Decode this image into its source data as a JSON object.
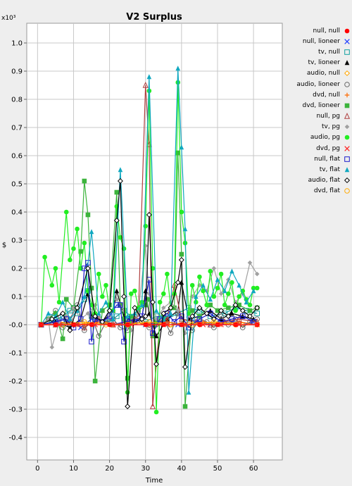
{
  "chart_data": {
    "type": "line",
    "title": "V2 Surplus",
    "xlabel": "Time",
    "ylabel": "$",
    "y_multiplier_label": "x10³",
    "xlim": [
      -3,
      68
    ],
    "ylim": [
      -0.48,
      1.07
    ],
    "x_ticks": [
      0,
      10,
      20,
      30,
      40,
      50,
      60
    ],
    "y_ticks": [
      -0.4,
      -0.3,
      -0.2,
      -0.1,
      0.0,
      0.1,
      0.2,
      0.3,
      0.4,
      0.5,
      0.6,
      0.7,
      0.8,
      0.9,
      1.0
    ],
    "y_tick_labels": [
      "-0.4",
      "-0.3",
      "-0.2",
      "-0.1",
      "-0.0",
      "0.1",
      "0.2",
      "0.3",
      "0.4",
      "0.5",
      "0.6",
      "0.7",
      "0.8",
      "0.9",
      "1.0"
    ],
    "grid": true,
    "legend_position": "right",
    "series": [
      {
        "name": "null, null",
        "color": "#ff0000",
        "marker": "circle-filled",
        "x": [
          1,
          5,
          10,
          15,
          20,
          25,
          30,
          35,
          40,
          45,
          50,
          55,
          61
        ],
        "y": [
          0,
          0,
          0,
          0,
          0,
          0,
          0,
          0,
          0,
          0,
          0,
          0,
          0
        ]
      },
      {
        "name": "null, lioneer",
        "color": "#1e3cff",
        "marker": "x",
        "x": [
          1,
          4,
          7,
          9,
          12,
          15,
          18,
          21,
          24,
          27,
          30,
          33,
          36,
          39,
          42,
          45,
          48,
          51,
          54,
          57,
          60
        ],
        "y": [
          0,
          0.01,
          0.02,
          0.01,
          -0.01,
          0.02,
          0.01,
          0,
          0.01,
          0.02,
          0,
          0.01,
          0.01,
          0,
          0.02,
          0.01,
          0,
          0.01,
          0.01,
          0,
          0.01
        ]
      },
      {
        "name": "tv, null",
        "color": "#10a0a0",
        "marker": "square-open",
        "x": [
          1,
          4,
          7,
          9,
          10,
          11,
          13,
          14,
          15,
          17,
          20,
          22,
          24,
          27,
          30,
          33,
          36,
          39,
          42,
          45,
          48,
          52,
          55,
          58,
          61
        ],
        "y": [
          0,
          0.01,
          0.03,
          0.05,
          0.06,
          0.04,
          0.09,
          0.12,
          0.03,
          0.02,
          0.01,
          0.03,
          0.05,
          0.02,
          0.01,
          0.03,
          0.02,
          0.04,
          0.06,
          0.05,
          0.03,
          0.04,
          0.06,
          0.05,
          0.04
        ]
      },
      {
        "name": "tv, lioneer",
        "color": "#000000",
        "marker": "triangle-filled",
        "x": [
          1,
          5,
          9,
          12,
          14,
          15,
          18,
          21,
          22,
          24,
          27,
          29,
          30,
          31,
          33,
          36,
          39,
          40,
          42,
          45,
          48,
          51,
          54,
          57,
          60
        ],
        "y": [
          0,
          0.01,
          -0.01,
          0.02,
          0.11,
          0.03,
          0.01,
          0.05,
          0.12,
          0.03,
          0.01,
          0.02,
          0.12,
          0.04,
          -0.04,
          0.02,
          0.05,
          0.15,
          0.02,
          0.03,
          0.05,
          0.02,
          0.04,
          0.03,
          0.02
        ]
      },
      {
        "name": "audio, null",
        "color": "#ffa500",
        "marker": "diamond-open",
        "x": [
          1,
          5,
          9,
          13,
          17,
          21,
          25,
          29,
          33,
          37,
          41,
          45,
          49,
          53,
          57,
          61
        ],
        "y": [
          0,
          0,
          0.01,
          0,
          0.01,
          0,
          0,
          0.01,
          0,
          0,
          0.01,
          0,
          0,
          0.01,
          0,
          0
        ]
      },
      {
        "name": "audio, lioneer",
        "color": "#666666",
        "marker": "circle-open",
        "x": [
          1,
          3,
          5,
          7,
          9,
          11,
          13,
          15,
          17,
          19,
          21,
          23,
          25,
          27,
          29,
          31,
          33,
          35,
          37,
          39,
          41,
          43,
          45,
          47,
          49,
          51,
          53,
          55,
          57,
          59,
          61
        ],
        "y": [
          0,
          0.02,
          0.05,
          -0.01,
          0.02,
          0.07,
          -0.02,
          0.03,
          -0.04,
          0.01,
          0.02,
          -0.01,
          -0.02,
          0.03,
          0.01,
          -0.01,
          0,
          0.02,
          -0.03,
          0.04,
          0.01,
          -0.02,
          0.02,
          0.01,
          -0.01,
          0.03,
          0,
          0.02,
          -0.01,
          0.01,
          0.02
        ]
      },
      {
        "name": "dvd, null",
        "color": "#ff6a00",
        "marker": "plus",
        "x": [
          1,
          6,
          11,
          16,
          21,
          26,
          31,
          36,
          41,
          46,
          51,
          56,
          61
        ],
        "y": [
          0,
          0.01,
          0,
          0.01,
          0,
          0.01,
          0,
          0.01,
          0,
          0.01,
          0,
          0.01,
          0
        ]
      },
      {
        "name": "dvd, lioneer",
        "color": "#3cb43c",
        "marker": "square-filled",
        "x": [
          1,
          3,
          5,
          7,
          8,
          10,
          12,
          13,
          14,
          15,
          16,
          18,
          20,
          22,
          23,
          24,
          25,
          26,
          28,
          30,
          31,
          32,
          33,
          35,
          38,
          39,
          40,
          41,
          43,
          45,
          48,
          50,
          53,
          56,
          59,
          61
        ],
        "y": [
          0,
          0.02,
          0.04,
          -0.05,
          0.09,
          0.06,
          0.26,
          0.51,
          0.39,
          0.13,
          -0.2,
          0.05,
          0.07,
          0.47,
          0.07,
          0.02,
          -0.19,
          0.03,
          0.05,
          0.07,
          0.09,
          -0.04,
          0.01,
          0.03,
          0.06,
          0.61,
          0.25,
          -0.29,
          0.05,
          0.03,
          0.07,
          0.05,
          0.06,
          0.07,
          0.05,
          0.06
        ]
      },
      {
        "name": "null, pg",
        "color": "#b04040",
        "marker": "triangle-open",
        "x": [
          1,
          5,
          9,
          13,
          17,
          21,
          25,
          28,
          30,
          31,
          32,
          34,
          36,
          38,
          40,
          44,
          48,
          52,
          56,
          61
        ],
        "y": [
          0,
          0,
          0.01,
          -0.01,
          0.02,
          0,
          0.01,
          0.03,
          0.85,
          0.64,
          -0.29,
          0.01,
          0.02,
          0.14,
          0.02,
          0.01,
          0,
          0.01,
          0.02,
          0.01
        ]
      },
      {
        "name": "tv, pg",
        "color": "#a0a0a0",
        "marker": "diamond-filled",
        "x": [
          1,
          3,
          4,
          6,
          8,
          10,
          12,
          14,
          16,
          18,
          20,
          22,
          24,
          26,
          28,
          30,
          31,
          33,
          35,
          37,
          39,
          41,
          43,
          45,
          47,
          49,
          51,
          53,
          55,
          57,
          59,
          61
        ],
        "y": [
          0,
          0.02,
          -0.08,
          0.01,
          0.03,
          0.06,
          0.02,
          0.04,
          0.07,
          0.01,
          0.03,
          0.09,
          0.05,
          -0.02,
          0.04,
          0.28,
          0.11,
          0.02,
          0.06,
          0.08,
          0.05,
          -0.03,
          0.1,
          0.14,
          0.12,
          0.2,
          0.11,
          0.16,
          0.08,
          0.11,
          0.22,
          0.18
        ]
      },
      {
        "name": "audio, pg",
        "color": "#22ee22",
        "marker": "circle-filled",
        "x": [
          1,
          2,
          4,
          5,
          6,
          8,
          9,
          10,
          11,
          12,
          13,
          14,
          15,
          16,
          17,
          18,
          19,
          20,
          21,
          22,
          23,
          24,
          25,
          26,
          27,
          28,
          29,
          30,
          31,
          32,
          33,
          34,
          35,
          36,
          37,
          38,
          39,
          40,
          41,
          42,
          43,
          44,
          45,
          46,
          47,
          48,
          49,
          50,
          51,
          52,
          53,
          54,
          55,
          56,
          57,
          58,
          59,
          60,
          61
        ],
        "y": [
          0,
          0.24,
          0.14,
          0.2,
          0.08,
          0.4,
          0.23,
          0.27,
          0.34,
          0.2,
          0.29,
          0.12,
          0.07,
          0.04,
          0.18,
          0.1,
          0.14,
          0.05,
          0.05,
          0.42,
          0.31,
          0.27,
          -0.24,
          0.11,
          0.12,
          0.06,
          0.08,
          0.35,
          0.83,
          0.2,
          -0.31,
          0.08,
          0.11,
          0.18,
          0.06,
          0.11,
          0.86,
          0.4,
          0.29,
          0.04,
          0.14,
          0.08,
          0.17,
          0.12,
          0.07,
          0.19,
          0.1,
          0.13,
          0.18,
          0.07,
          0.11,
          0.15,
          0.05,
          0.1,
          0.12,
          0.09,
          0.07,
          0.13,
          0.13
        ]
      },
      {
        "name": "dvd, pg",
        "color": "#ff2020",
        "marker": "x",
        "x": [
          1,
          6,
          11,
          16,
          21,
          26,
          31,
          36,
          41,
          46,
          51,
          56,
          61
        ],
        "y": [
          0,
          0,
          0,
          0,
          0,
          0,
          0,
          0,
          0,
          0,
          0,
          0,
          0
        ]
      },
      {
        "name": "null, flat",
        "color": "#1a1acc",
        "marker": "square-open",
        "x": [
          1,
          5,
          8,
          10,
          12,
          13,
          14,
          15,
          16,
          18,
          20,
          22,
          23,
          24,
          25,
          27,
          29,
          31,
          32,
          34,
          36,
          38,
          40,
          42,
          45,
          48,
          51,
          54,
          57,
          60
        ],
        "y": [
          0,
          0.01,
          0.02,
          -0.01,
          0.02,
          0.2,
          0.22,
          -0.06,
          0.02,
          0.01,
          0.03,
          0.07,
          0.07,
          -0.06,
          0.02,
          0.01,
          0.03,
          0.16,
          -0.03,
          0.02,
          0.04,
          0.01,
          0.03,
          -0.01,
          0.02,
          0.04,
          0.01,
          0.02,
          0.03,
          0.01
        ]
      },
      {
        "name": "tv, flat",
        "color": "#10a8c0",
        "marker": "triangle-filled",
        "x": [
          1,
          3,
          5,
          7,
          9,
          11,
          13,
          15,
          17,
          19,
          21,
          23,
          25,
          27,
          29,
          31,
          33,
          35,
          37,
          39,
          40,
          41,
          42,
          44,
          46,
          48,
          50,
          52,
          54,
          56,
          58,
          60
        ],
        "y": [
          0,
          0.04,
          0.03,
          0.08,
          0.02,
          0.05,
          0.1,
          0.33,
          0.04,
          0.08,
          0.02,
          0.55,
          0.03,
          0.04,
          0.07,
          0.88,
          0.05,
          0.02,
          0.04,
          0.91,
          0.63,
          0.34,
          -0.24,
          0.1,
          0.14,
          0.09,
          0.16,
          0.12,
          0.19,
          0.14,
          0.08,
          0.12
        ]
      },
      {
        "name": "audio, flat",
        "color": "#000000",
        "marker": "diamond-open",
        "x": [
          1,
          4,
          7,
          9,
          11,
          14,
          16,
          18,
          20,
          22,
          23,
          24,
          25,
          27,
          29,
          30,
          31,
          32,
          33,
          35,
          37,
          39,
          40,
          41,
          43,
          45,
          47,
          49,
          51,
          53,
          55,
          57,
          59,
          61
        ],
        "y": [
          0,
          0.02,
          0.04,
          -0.02,
          0.06,
          0.2,
          0.03,
          0.01,
          0.05,
          0.37,
          0.51,
          0.1,
          -0.29,
          0.06,
          0.02,
          0.03,
          0.39,
          0.08,
          -0.14,
          0.04,
          0.06,
          0.15,
          0.23,
          -0.15,
          0.03,
          0.06,
          0.04,
          0.02,
          0.05,
          0.03,
          0.07,
          0.05,
          0.03,
          0.06
        ]
      },
      {
        "name": "dvd, flat",
        "color": "#ffaa00",
        "marker": "circle-open",
        "x": [
          1,
          7,
          13,
          19,
          25,
          31,
          37,
          43,
          49,
          55,
          61
        ],
        "y": [
          0,
          0,
          0.01,
          0,
          0,
          0.01,
          0,
          0,
          0.01,
          0,
          0
        ]
      }
    ]
  }
}
